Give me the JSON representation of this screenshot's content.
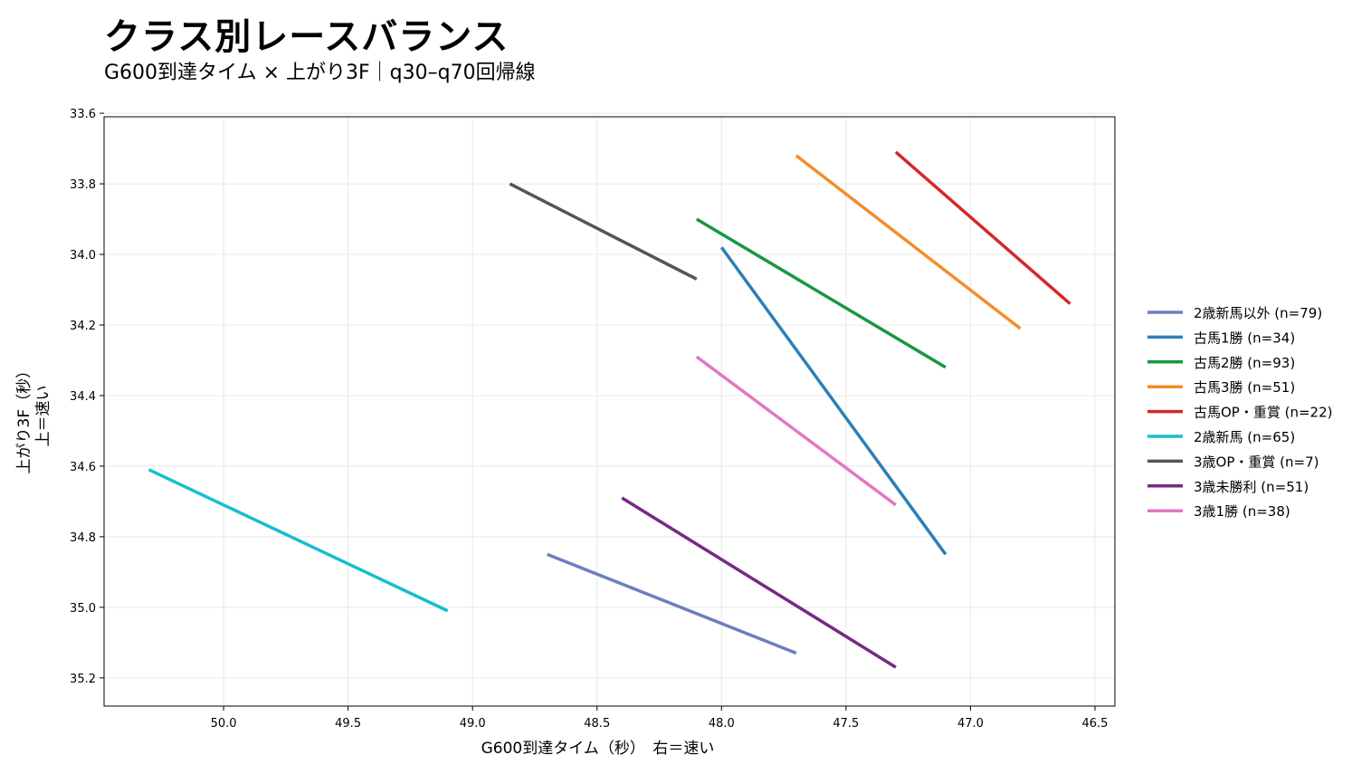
{
  "chart_data": {
    "type": "line",
    "title": "クラス別レースバランス",
    "subtitle": "G600到達タイム × 上がり3F｜q30–q70回帰線",
    "xlabel": "G600到達タイム（秒）　右＝速い",
    "ylabel": [
      "上がり3F（秒）",
      "上＝速い"
    ],
    "xlim": [
      50.48,
      46.42
    ],
    "ylim": [
      35.28,
      33.61
    ],
    "x_inverted": true,
    "y_inverted": true,
    "grid": true,
    "legend_position": "right",
    "xticks": [
      {
        "value": 50.0,
        "label": "50.0"
      },
      {
        "value": 49.5,
        "label": "49.5"
      },
      {
        "value": 49.0,
        "label": "49.0"
      },
      {
        "value": 48.5,
        "label": "48.5"
      },
      {
        "value": 48.0,
        "label": "48.0"
      },
      {
        "value": 47.5,
        "label": "47.5"
      },
      {
        "value": 47.0,
        "label": "47.0"
      },
      {
        "value": 46.5,
        "label": "46.5"
      }
    ],
    "yticks": [
      {
        "value": 33.6,
        "label": "33.6"
      },
      {
        "value": 33.8,
        "label": "33.8"
      },
      {
        "value": 34.0,
        "label": "34.0"
      },
      {
        "value": 34.2,
        "label": "34.2"
      },
      {
        "value": 34.4,
        "label": "34.4"
      },
      {
        "value": 34.6,
        "label": "34.6"
      },
      {
        "value": 34.8,
        "label": "34.8"
      },
      {
        "value": 35.0,
        "label": "35.0"
      },
      {
        "value": 35.2,
        "label": "35.2"
      }
    ],
    "series": [
      {
        "name": "2歳新馬以外 (n=79)",
        "color": "#6b7fbf",
        "x": [
          48.7,
          47.7
        ],
        "y": [
          34.85,
          35.13
        ]
      },
      {
        "name": "古馬1勝 (n=34)",
        "color": "#2c7fb8",
        "x": [
          48.0,
          47.1
        ],
        "y": [
          33.98,
          34.85
        ]
      },
      {
        "name": "古馬2勝 (n=93)",
        "color": "#1a9641",
        "x": [
          48.1,
          47.1
        ],
        "y": [
          33.9,
          34.32
        ]
      },
      {
        "name": "古馬3勝 (n=51)",
        "color": "#f28e2b",
        "x": [
          47.7,
          46.8
        ],
        "y": [
          33.72,
          34.21
        ]
      },
      {
        "name": "古馬OP・重賞 (n=22)",
        "color": "#d62728",
        "x": [
          47.3,
          46.6
        ],
        "y": [
          33.71,
          34.14
        ]
      },
      {
        "name": "2歳新馬 (n=65)",
        "color": "#17becf",
        "x": [
          50.3,
          49.1
        ],
        "y": [
          34.61,
          35.01
        ]
      },
      {
        "name": "3歳OP・重賞 (n=7)",
        "color": "#555555",
        "x": [
          48.85,
          48.1
        ],
        "y": [
          33.8,
          34.07
        ]
      },
      {
        "name": "3歳未勝利 (n=51)",
        "color": "#762a83",
        "x": [
          48.4,
          47.3
        ],
        "y": [
          34.69,
          35.17
        ]
      },
      {
        "name": "3歳1勝 (n=38)",
        "color": "#e377c2",
        "x": [
          48.1,
          47.3
        ],
        "y": [
          34.29,
          34.71
        ]
      }
    ]
  }
}
